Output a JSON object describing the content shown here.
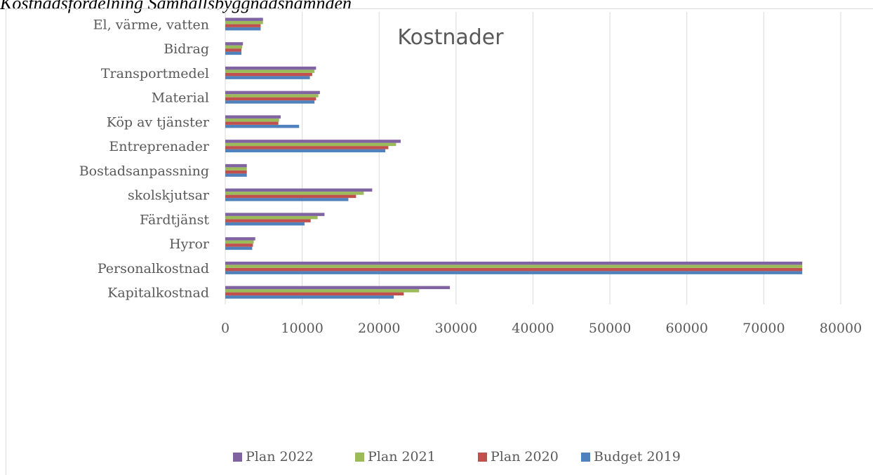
{
  "page": {
    "heading": "Kostnadsfördelning Samhällsbyggnadsnämnden"
  },
  "chart_data": {
    "type": "bar",
    "orientation": "horizontal",
    "title": "Kostnader",
    "categories": [
      "Kapitalkostnad",
      "Personalkostnad",
      "Hyror",
      "Färdtjänst",
      "skolskjutsar",
      "Bostadsanpassning",
      "Entreprenader",
      "Köp av tjänster",
      "Material",
      "Transportmedel",
      "Bidrag",
      "El, värme, vatten"
    ],
    "series": [
      {
        "name": "Budget 2019",
        "color": "#4f81bd",
        "values": [
          21900,
          75000,
          3500,
          10300,
          16000,
          2800,
          20800,
          9600,
          11600,
          11000,
          2100,
          4600
        ]
      },
      {
        "name": "Plan 2020",
        "color": "#c0504d",
        "values": [
          23200,
          75000,
          3600,
          11100,
          17000,
          2800,
          21200,
          6900,
          11800,
          11300,
          2100,
          4600
        ]
      },
      {
        "name": "Plan 2021",
        "color": "#9bbb59",
        "values": [
          25200,
          75000,
          3700,
          12000,
          18000,
          2800,
          22200,
          7000,
          12100,
          11600,
          2200,
          4900
        ]
      },
      {
        "name": "Plan 2022",
        "color": "#8064a2",
        "values": [
          29200,
          75000,
          3900,
          12900,
          19100,
          2800,
          22800,
          7200,
          12300,
          11800,
          2300,
          4900
        ]
      }
    ],
    "xlim": [
      0,
      80000
    ],
    "xticks": [
      0,
      10000,
      20000,
      30000,
      40000,
      50000,
      60000,
      70000,
      80000
    ],
    "grid": "vertical",
    "legend_position": "bottom",
    "legend_order": [
      "Plan 2022",
      "Plan 2021",
      "Plan 2020",
      "Budget 2019"
    ]
  }
}
